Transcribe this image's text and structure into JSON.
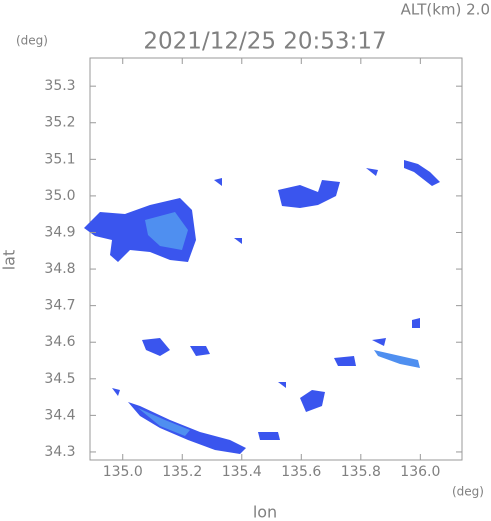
{
  "chart_data": {
    "type": "radar_map",
    "title": "2021/12/25 20:53:17",
    "subtitle": "ALT(km) 2.0",
    "xlabel": "lon",
    "ylabel": "lat",
    "x_unit": "(deg)",
    "y_unit": "(deg)",
    "xlim": [
      134.89,
      136.14
    ],
    "ylim": [
      34.278,
      35.377
    ],
    "xticks": [
      {
        "value": 135.0,
        "label": "135.0"
      },
      135.2,
      135.4,
      135.6,
      135.8,
      {
        "value": 136.0,
        "label": "136.0"
      }
    ],
    "yticks": [
      34.3,
      34.4,
      34.5,
      34.6,
      34.7,
      34.8,
      34.9,
      {
        "value": 35.0,
        "label": "35.0"
      },
      35.1,
      35.2,
      35.3
    ]
  }
}
